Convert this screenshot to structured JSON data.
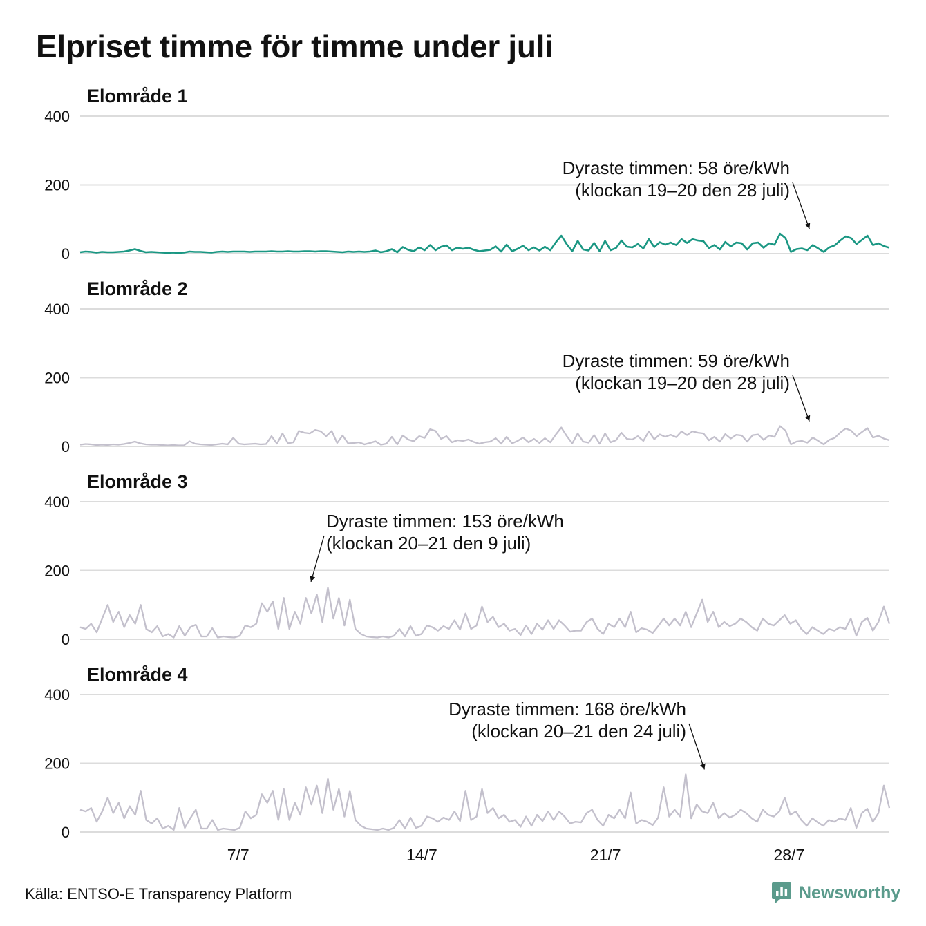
{
  "title": "Elpriset timme för timme under juli",
  "source": "Källa: ENTSO-E Transparency Platform",
  "brand": {
    "name": "Newsworthy",
    "icon": "newsworthy-logo-icon",
    "color": "#5b9b8c"
  },
  "colors": {
    "highlight": "#1a9783",
    "muted": "#c3c0cc",
    "grid": "#dcdcdc"
  },
  "x_ticks": [
    "7/7",
    "14/7",
    "21/7",
    "28/7"
  ],
  "chart_data": [
    {
      "type": "line",
      "title": "Elområde 1",
      "x_range": [
        "1 juli",
        "31 juli"
      ],
      "ylim": [
        0,
        400
      ],
      "y_ticks": [
        "400",
        "200",
        "0"
      ],
      "color": "#1a9783",
      "annotation": {
        "line1": "Dyraste timmen: 58 öre/kWh",
        "line2": "(klockan 19–20 den 28 juli)",
        "day": 28.8,
        "value": 58
      },
      "series": [
        {
          "values": [
            4,
            6,
            5,
            3,
            5,
            4,
            4,
            5,
            6,
            9,
            13,
            8,
            4,
            5,
            4,
            3,
            2,
            3,
            2,
            3,
            6,
            5,
            5,
            4,
            3,
            5,
            6,
            5,
            6,
            6,
            6,
            5,
            6,
            6,
            6,
            7,
            6,
            6,
            7,
            6,
            6,
            7,
            7,
            6,
            7,
            7,
            6,
            5,
            4,
            6,
            5,
            6,
            5,
            6,
            9,
            4,
            7,
            13,
            4,
            19,
            11,
            7,
            18,
            10,
            25,
            10,
            20,
            24,
            10,
            17,
            14,
            17,
            11,
            7,
            9,
            11,
            21,
            6,
            26,
            7,
            14,
            23,
            10,
            18,
            9,
            20,
            10,
            33,
            52,
            27,
            7,
            37,
            12,
            9,
            31,
            7,
            37,
            10,
            16,
            38,
            20,
            18,
            28,
            15,
            42,
            19,
            33,
            26,
            32,
            25,
            42,
            31,
            42,
            38,
            36,
            16,
            25,
            12,
            34,
            21,
            32,
            30,
            12,
            30,
            32,
            17,
            30,
            26,
            58,
            45,
            5,
            13,
            15,
            10,
            25,
            15,
            5,
            18,
            24,
            38,
            50,
            45,
            28,
            40,
            52,
            25,
            30,
            22,
            17
          ]
        }
      ]
    },
    {
      "type": "line",
      "title": "Elområde 2",
      "x_range": [
        "1 juli",
        "31 juli"
      ],
      "ylim": [
        0,
        400
      ],
      "y_ticks": [
        "400",
        "200",
        "0"
      ],
      "color": "#c3c0cc",
      "annotation": {
        "line1": "Dyraste timmen: 59 öre/kWh",
        "line2": "(klockan 19–20 den 28 juli)",
        "day": 28.8,
        "value": 59
      },
      "series": [
        {
          "values": [
            5,
            7,
            6,
            4,
            5,
            4,
            6,
            5,
            7,
            10,
            14,
            9,
            6,
            5,
            5,
            4,
            3,
            4,
            3,
            3,
            15,
            8,
            6,
            5,
            4,
            6,
            8,
            6,
            25,
            8,
            6,
            7,
            8,
            6,
            7,
            30,
            8,
            38,
            9,
            12,
            45,
            40,
            38,
            48,
            44,
            30,
            45,
            10,
            32,
            9,
            10,
            12,
            6,
            10,
            15,
            5,
            8,
            28,
            6,
            32,
            20,
            15,
            30,
            25,
            50,
            45,
            22,
            30,
            12,
            18,
            16,
            20,
            13,
            8,
            12,
            14,
            24,
            8,
            28,
            9,
            16,
            26,
            12,
            22,
            10,
            24,
            12,
            35,
            55,
            30,
            9,
            38,
            14,
            11,
            33,
            8,
            38,
            12,
            18,
            40,
            22,
            20,
            30,
            16,
            44,
            21,
            35,
            28,
            34,
            27,
            44,
            33,
            44,
            40,
            38,
            18,
            28,
            14,
            36,
            23,
            34,
            32,
            14,
            33,
            35,
            19,
            32,
            28,
            59,
            46,
            6,
            14,
            16,
            11,
            26,
            16,
            6,
            19,
            25,
            40,
            52,
            46,
            30,
            42,
            53,
            26,
            31,
            23,
            18
          ]
        }
      ]
    },
    {
      "type": "line",
      "title": "Elområde 3",
      "x_range": [
        "1 juli",
        "31 juli"
      ],
      "ylim": [
        0,
        400
      ],
      "y_ticks": [
        "400",
        "200",
        "0"
      ],
      "color": "#c3c0cc",
      "annotation": {
        "line1": "Dyraste timmen: 153 öre/kWh",
        "line2": "(klockan 20–21 den 9 juli)",
        "day": 9.8,
        "value": 153
      },
      "series": [
        {
          "values": [
            35,
            30,
            45,
            20,
            60,
            100,
            50,
            80,
            35,
            70,
            45,
            100,
            30,
            20,
            38,
            8,
            15,
            5,
            38,
            10,
            35,
            42,
            8,
            8,
            32,
            5,
            8,
            6,
            5,
            10,
            40,
            35,
            45,
            105,
            80,
            110,
            30,
            120,
            30,
            80,
            45,
            120,
            75,
            130,
            50,
            150,
            60,
            120,
            40,
            115,
            30,
            15,
            8,
            6,
            5,
            8,
            5,
            10,
            30,
            8,
            38,
            10,
            15,
            40,
            35,
            25,
            38,
            30,
            55,
            28,
            75,
            30,
            40,
            95,
            50,
            65,
            35,
            45,
            25,
            30,
            12,
            40,
            15,
            45,
            28,
            55,
            30,
            55,
            40,
            22,
            25,
            25,
            50,
            60,
            30,
            15,
            45,
            35,
            60,
            35,
            80,
            20,
            32,
            28,
            18,
            38,
            60,
            40,
            60,
            40,
            80,
            35,
            75,
            115,
            50,
            80,
            35,
            50,
            38,
            45,
            60,
            50,
            35,
            25,
            60,
            45,
            40,
            55,
            70,
            45,
            55,
            30,
            15,
            35,
            25,
            15,
            30,
            25,
            35,
            30,
            60,
            10,
            50,
            62,
            25,
            50,
            95,
            45
          ]
        }
      ]
    },
    {
      "type": "line",
      "title": "Elområde 4",
      "x_range": [
        "1 juli",
        "31 juli"
      ],
      "ylim": [
        0,
        400
      ],
      "y_ticks": [
        "400",
        "200",
        "0"
      ],
      "color": "#c3c0cc",
      "annotation": {
        "line1": "Dyraste timmen: 168 öre/kWh",
        "line2": "(klockan 20–21 den 24 juli)",
        "day": 24.8,
        "value": 168
      },
      "series": [
        {
          "values": [
            65,
            60,
            70,
            30,
            60,
            100,
            55,
            85,
            40,
            75,
            50,
            120,
            35,
            25,
            40,
            10,
            18,
            6,
            70,
            12,
            40,
            65,
            10,
            10,
            35,
            6,
            10,
            8,
            6,
            12,
            60,
            40,
            50,
            110,
            85,
            120,
            35,
            125,
            35,
            85,
            50,
            130,
            80,
            135,
            55,
            155,
            65,
            125,
            45,
            120,
            35,
            18,
            10,
            8,
            6,
            10,
            6,
            12,
            35,
            10,
            42,
            12,
            18,
            45,
            40,
            30,
            42,
            35,
            60,
            32,
            120,
            35,
            45,
            125,
            55,
            70,
            40,
            50,
            30,
            35,
            15,
            45,
            18,
            50,
            32,
            60,
            35,
            60,
            45,
            25,
            30,
            28,
            55,
            65,
            35,
            18,
            50,
            40,
            65,
            40,
            115,
            25,
            35,
            30,
            20,
            42,
            130,
            45,
            65,
            45,
            168,
            40,
            80,
            60,
            55,
            85,
            40,
            55,
            42,
            50,
            65,
            55,
            40,
            30,
            65,
            50,
            45,
            60,
            100,
            50,
            60,
            35,
            18,
            40,
            28,
            18,
            35,
            30,
            40,
            35,
            70,
            12,
            55,
            68,
            30,
            55,
            135,
            70
          ]
        }
      ]
    }
  ]
}
